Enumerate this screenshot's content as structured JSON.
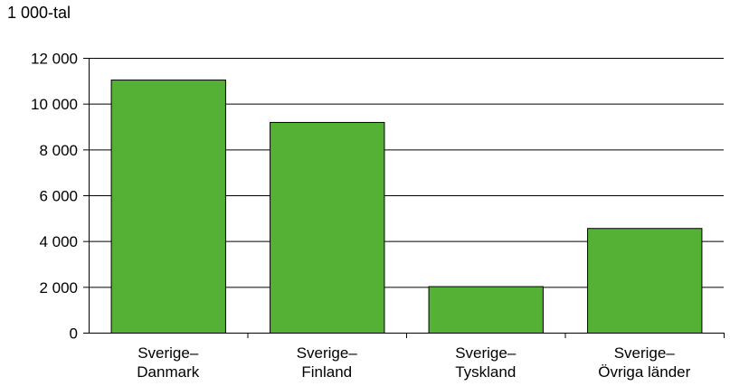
{
  "chart_data": {
    "type": "bar",
    "unit_label": "1 000-tal",
    "categories": [
      [
        "Sverige–",
        "Danmark"
      ],
      [
        "Sverige–",
        "Finland"
      ],
      [
        "Sverige–",
        "Tyskland"
      ],
      [
        "Sverige–",
        "Övriga länder"
      ]
    ],
    "values": [
      11050,
      9200,
      2030,
      4570
    ],
    "ylim": [
      0,
      12000
    ],
    "yticks": [
      0,
      2000,
      4000,
      6000,
      8000,
      10000,
      12000
    ],
    "ytick_labels": [
      "0",
      "2 000",
      "4 000",
      "6 000",
      "8 000",
      "10 000",
      "12 000"
    ],
    "grid": true,
    "colors": {
      "bar_fill": "#55b135",
      "bar_stroke": "#000000",
      "grid": "#000000"
    }
  }
}
